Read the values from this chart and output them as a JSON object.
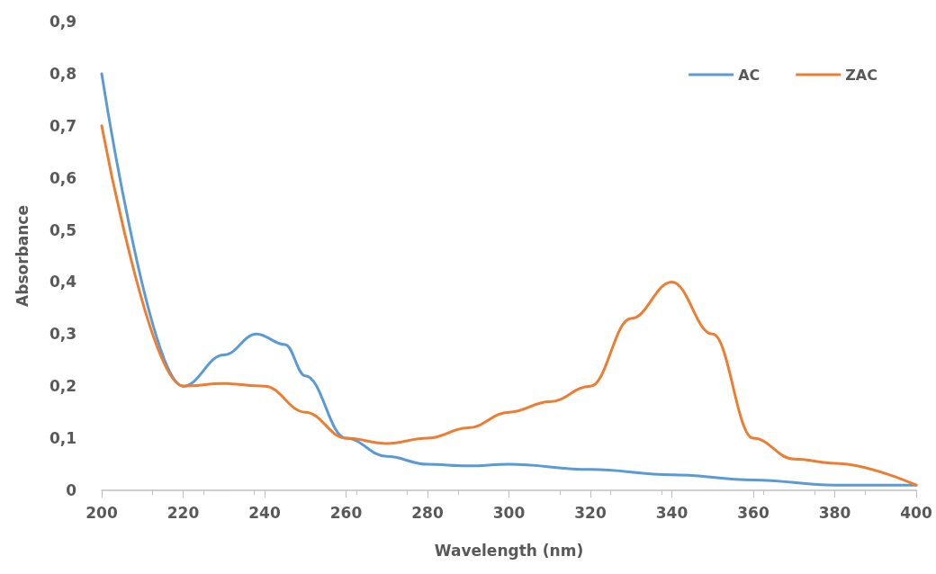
{
  "chart_data": {
    "type": "line",
    "xlabel": "Wavelength (nm)",
    "ylabel": "Absorbance",
    "xlim": [
      200,
      400
    ],
    "xticks": [
      200,
      220,
      240,
      260,
      280,
      300,
      320,
      340,
      360,
      380,
      400
    ],
    "ylim": [
      0,
      0.9
    ],
    "yticks": [
      0,
      {
        "value": 0.1,
        "label": "0,1"
      },
      {
        "value": 0.2,
        "label": "0,2"
      },
      {
        "value": 0.3,
        "label": "0,3"
      },
      {
        "value": 0.4,
        "label": "0,4"
      },
      {
        "value": 0.5,
        "label": "0,5"
      },
      {
        "value": 0.6,
        "label": "0,6"
      },
      {
        "value": 0.7,
        "label": "0,7"
      },
      {
        "value": 0.8,
        "label": "0,8"
      },
      {
        "value": 0.9,
        "label": "0,9"
      }
    ],
    "legend": "top right",
    "marker": "none",
    "line_style": "solid",
    "series": [
      {
        "name": "AC",
        "color": "#5b9bd5",
        "x": [
          200,
          220,
          230,
          238,
          245,
          250,
          260,
          270,
          280,
          290,
          300,
          320,
          340,
          360,
          380,
          400
        ],
        "values": [
          0.8,
          0.2,
          0.26,
          0.3,
          0.28,
          0.22,
          0.1,
          0.065,
          0.05,
          0.047,
          0.05,
          0.04,
          0.03,
          0.02,
          0.01,
          0.01
        ]
      },
      {
        "name": "ZAC",
        "color": "#ed7d31",
        "x": [
          200,
          220,
          230,
          240,
          250,
          260,
          270,
          280,
          290,
          300,
          310,
          320,
          330,
          340,
          350,
          360,
          370,
          380,
          400
        ],
        "values": [
          0.7,
          0.2,
          0.205,
          0.2,
          0.15,
          0.1,
          0.09,
          0.1,
          0.12,
          0.15,
          0.17,
          0.2,
          0.33,
          0.4,
          0.3,
          0.1,
          0.06,
          0.052,
          0.01
        ]
      }
    ]
  }
}
